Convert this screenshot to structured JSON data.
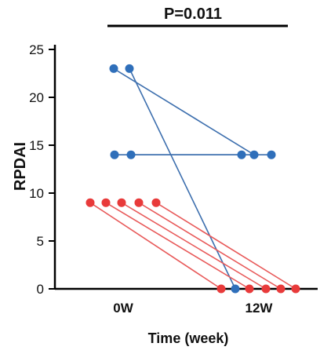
{
  "chart_data": {
    "type": "line",
    "annotation": "P=0.011",
    "xlabel": "Time (week)",
    "ylabel": "RPDAI",
    "x_ticks": [
      "0W",
      "12W"
    ],
    "y_ticks": [
      "0",
      "5",
      "10",
      "15",
      "20",
      "25"
    ],
    "ylim": [
      0,
      25
    ],
    "grid": false,
    "colors": {
      "blue": "#2f6fba",
      "red": "#e83a3a",
      "blue_line": "#3d6fae",
      "red_line": "#e85a5a"
    },
    "series": [
      {
        "group": "blue",
        "values": [
          23,
          14
        ]
      },
      {
        "group": "blue",
        "values": [
          23,
          0
        ]
      },
      {
        "group": "blue",
        "values": [
          14,
          14
        ]
      },
      {
        "group": "blue",
        "values": [
          14,
          14
        ]
      },
      {
        "group": "red",
        "values": [
          9,
          0
        ]
      },
      {
        "group": "red",
        "values": [
          9,
          0
        ]
      },
      {
        "group": "red",
        "values": [
          9,
          0
        ]
      },
      {
        "group": "red",
        "values": [
          9,
          0
        ]
      },
      {
        "group": "red",
        "values": [
          9,
          0
        ]
      }
    ]
  }
}
